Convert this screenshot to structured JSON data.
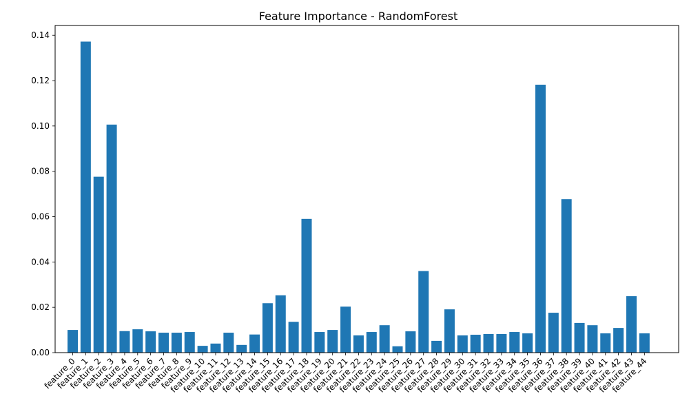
{
  "chart_data": {
    "type": "bar",
    "title": "Feature Importance - RandomForest",
    "xlabel": "",
    "ylabel": "",
    "ylim": [
      0,
      0.14432
    ],
    "yticks": [
      "0.00",
      "0.02",
      "0.04",
      "0.06",
      "0.08",
      "0.10",
      "0.12",
      "0.14"
    ],
    "bar_color": "#1f77b4",
    "grid": false,
    "categories": [
      "feature_0",
      "feature_1",
      "feature_2",
      "feature_3",
      "feature_4",
      "feature_5",
      "feature_6",
      "feature_7",
      "feature_8",
      "feature_9",
      "feature_10",
      "feature_11",
      "feature_12",
      "feature_13",
      "feature_14",
      "feature_15",
      "feature_16",
      "feature_17",
      "feature_18",
      "feature_19",
      "feature_20",
      "feature_21",
      "feature_22",
      "feature_23",
      "feature_24",
      "feature_25",
      "feature_26",
      "feature_27",
      "feature_28",
      "feature_29",
      "feature_30",
      "feature_31",
      "feature_32",
      "feature_33",
      "feature_34",
      "feature_35",
      "feature_36",
      "feature_37",
      "feature_38",
      "feature_39",
      "feature_40",
      "feature_41",
      "feature_42",
      "feature_43",
      "feature_44"
    ],
    "values": [
      0.01,
      0.1372,
      0.0776,
      0.1006,
      0.0095,
      0.0103,
      0.0094,
      0.0088,
      0.0088,
      0.0091,
      0.003,
      0.004,
      0.0088,
      0.0034,
      0.008,
      0.0218,
      0.0253,
      0.0136,
      0.059,
      0.0091,
      0.01,
      0.0203,
      0.0076,
      0.0091,
      0.0121,
      0.0028,
      0.0094,
      0.036,
      0.0052,
      0.0191,
      0.0076,
      0.0079,
      0.0082,
      0.0082,
      0.0091,
      0.0085,
      0.1182,
      0.0176,
      0.0677,
      0.0131,
      0.0121,
      0.0085,
      0.0109,
      0.0249,
      0.0085
    ]
  }
}
